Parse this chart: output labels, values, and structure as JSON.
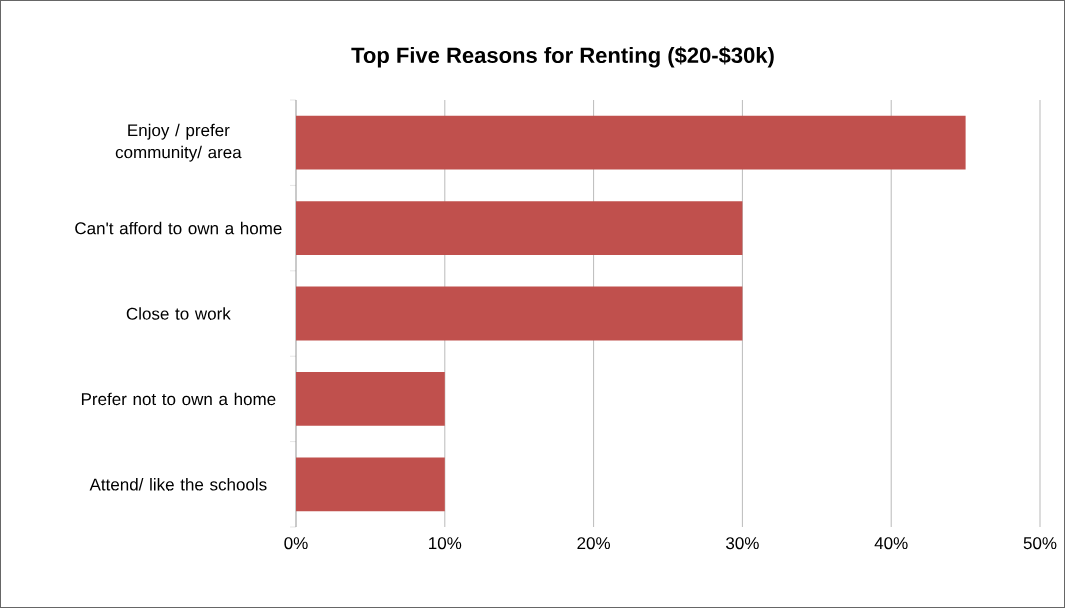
{
  "chart_data": {
    "type": "bar",
    "orientation": "horizontal",
    "title": "Top Five Reasons for Renting ($20-$30k)",
    "categories": [
      "Enjoy / prefer community/ area",
      "Can't afford to own a home",
      "Close to work",
      "Prefer not to own a home",
      "Attend/ like the schools"
    ],
    "values": [
      45,
      30,
      30,
      10,
      10
    ],
    "color": "#c0504d",
    "xlim": [
      0,
      50
    ],
    "xticks": [
      {
        "value": 0,
        "label": "0%"
      },
      {
        "value": 10,
        "label": "10%"
      },
      {
        "value": 20,
        "label": "20%"
      },
      {
        "value": 30,
        "label": "30%"
      },
      {
        "value": 40,
        "label": "40%"
      },
      {
        "value": 50,
        "label": "50%"
      }
    ],
    "grid": "x"
  }
}
